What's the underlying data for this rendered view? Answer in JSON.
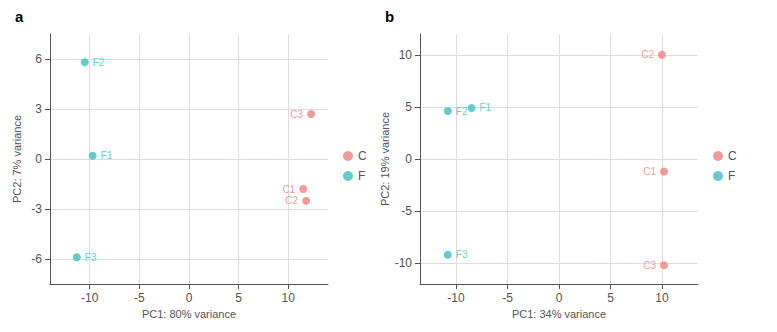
{
  "chart_data": [
    {
      "type": "scatter",
      "title": "a",
      "xlabel": "PC1: 80% variance",
      "ylabel": "PC2: 7% variance",
      "xlim": [
        -14,
        14
      ],
      "ylim": [
        -7.5,
        7.5
      ],
      "xticks": [
        -10,
        -5,
        0,
        5,
        10
      ],
      "yticks": [
        -6,
        -3,
        0,
        3,
        6
      ],
      "grid": true,
      "legend": "right",
      "series": [
        {
          "name": "C",
          "color": "#F08080",
          "x": [
            12.3,
            11.5,
            11.8
          ],
          "values": [
            2.7,
            -1.8,
            -2.5
          ],
          "labels": [
            "C3",
            "C1",
            "C2"
          ]
        },
        {
          "name": "F",
          "color": "#3DBFBF",
          "x": [
            -10.5,
            -9.7,
            -11.3
          ],
          "values": [
            5.8,
            0.2,
            -5.9
          ],
          "labels": [
            "F2",
            "F1",
            "F3"
          ]
        }
      ]
    },
    {
      "type": "scatter",
      "title": "b",
      "xlabel": "PC1: 34% variance",
      "ylabel": "PC2: 19% variance",
      "xlim": [
        -13.5,
        13.5
      ],
      "ylim": [
        -12,
        12
      ],
      "xticks": [
        -10,
        -5,
        0,
        5,
        10
      ],
      "yticks": [
        -10,
        -5,
        0,
        5,
        10
      ],
      "grid": true,
      "legend": "right",
      "series": [
        {
          "name": "C",
          "color": "#F08080",
          "x": [
            10.0,
            10.2,
            10.2
          ],
          "values": [
            10.0,
            -1.2,
            -10.2
          ],
          "labels": [
            "C2",
            "C1",
            "C3"
          ]
        },
        {
          "name": "F",
          "color": "#3DBFBF",
          "x": [
            -10.8,
            -8.5,
            -10.8
          ],
          "values": [
            4.6,
            4.9,
            -9.2
          ],
          "labels": [
            "F2",
            "F1",
            "F3"
          ]
        }
      ]
    }
  ]
}
